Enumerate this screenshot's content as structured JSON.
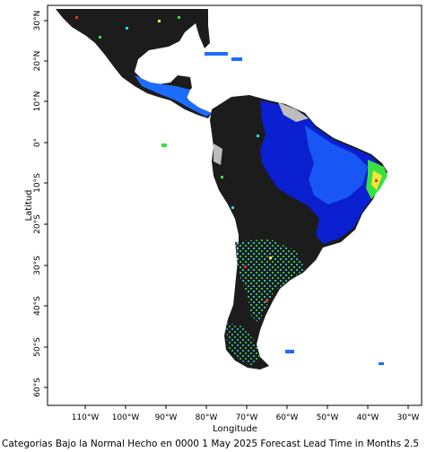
{
  "map": {
    "x_axis_label": "Longitude",
    "y_axis_label": "Latitud",
    "lon_ticks": [
      "110°W",
      "100°W",
      "90°W",
      "80°W",
      "70°W",
      "60°W",
      "50°W",
      "40°W",
      "30°W"
    ],
    "lat_ticks": [
      "30°N",
      "20°N",
      "10°N",
      "0°",
      "10°S",
      "20°S",
      "30°S",
      "40°S",
      "50°S",
      "60°S"
    ],
    "caption": "Categorias Bajo la Normal Hecho en 0000 1 May 2025 Forecast Lead Time in Months 2.5",
    "colors": {
      "land_dark": "#1c1c1c",
      "blue_low": "#0a1fd0",
      "blue_high": "#1e6bff",
      "cyan": "#2ad7f0",
      "green": "#39e040",
      "yellow": "#f2e63a",
      "red": "#e83020",
      "gray": "#bdbdbd"
    }
  }
}
